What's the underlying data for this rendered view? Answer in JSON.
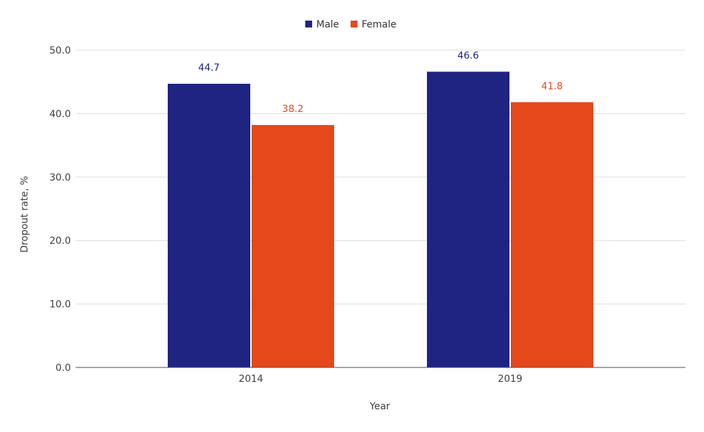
{
  "chart_data": {
    "type": "bar",
    "categories": [
      "2014",
      "2019"
    ],
    "series": [
      {
        "name": "Male",
        "values": [
          44.7,
          46.6
        ],
        "color": "#1f2382"
      },
      {
        "name": "Female",
        "values": [
          38.2,
          41.8
        ],
        "color": "#e4481b"
      }
    ],
    "xlabel": "Year",
    "ylabel": "Dropout rate, %",
    "ylim": [
      0,
      50
    ],
    "yticks": [
      "0.0",
      "10.0",
      "20.0",
      "30.0",
      "40.0",
      "50.0"
    ],
    "data_labels": [
      [
        "44.7",
        "46.6"
      ],
      [
        "38.2",
        "41.8"
      ]
    ],
    "grid": true,
    "legend_position": "top-center"
  }
}
